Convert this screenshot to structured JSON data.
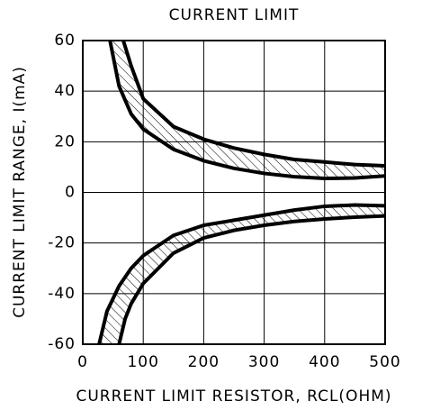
{
  "chart_data": {
    "type": "line",
    "title": "CURRENT LIMIT",
    "xlabel": "CURRENT LIMIT RESISTOR, RCL(OHM)",
    "ylabel": "CURRENT LIMIT RANGE, I(mA)",
    "xlim": [
      0,
      500
    ],
    "xticks": [
      0,
      100,
      200,
      300,
      400,
      500
    ],
    "ylim": [
      -60,
      60
    ],
    "yticks": [
      -60,
      -40,
      -20,
      0,
      20,
      40,
      60
    ],
    "grid": true,
    "hatch": true,
    "series": [
      {
        "color": "#000000",
        "x": [
          67,
          80,
          100,
          150,
          200,
          250,
          300,
          350,
          400,
          450,
          500
        ],
        "values": [
          60,
          50,
          37,
          26,
          21,
          17.5,
          15,
          13,
          12,
          11,
          10.5
        ]
      },
      {
        "color": "#000000",
        "x": [
          45,
          60,
          80,
          100,
          150,
          200,
          250,
          300,
          350,
          400,
          450,
          500
        ],
        "values": [
          60,
          42,
          31,
          25,
          17,
          12.5,
          9.5,
          7.5,
          6.2,
          5.5,
          5.7,
          6.5
        ]
      },
      {
        "color": "#000000",
        "x": [
          27,
          40,
          60,
          80,
          100,
          150,
          200,
          250,
          300,
          350,
          400,
          450,
          500
        ],
        "values": [
          -60,
          -47,
          -37,
          -30,
          -25,
          -17,
          -13,
          -11,
          -9,
          -7,
          -5.5,
          -5,
          -5.3
        ]
      },
      {
        "color": "#000000",
        "x": [
          60,
          70,
          80,
          100,
          150,
          200,
          250,
          300,
          350,
          400,
          450,
          500
        ],
        "values": [
          -60,
          -50,
          -44,
          -36,
          -24,
          -18,
          -15,
          -13,
          -11.5,
          -10.5,
          -9.8,
          -9.3
        ]
      }
    ]
  }
}
